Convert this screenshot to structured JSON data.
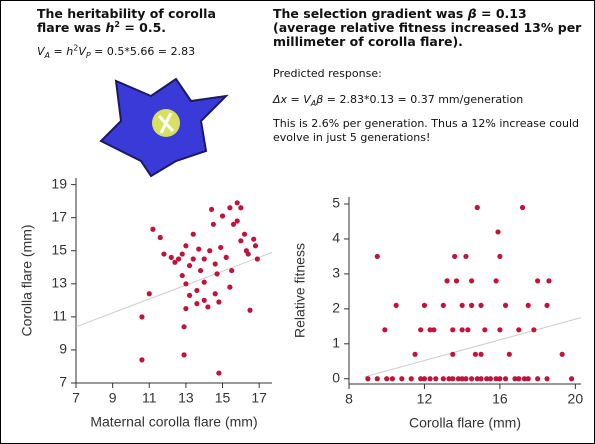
{
  "text": {
    "left_heading": [
      "The heritability of corolla flare was ",
      "h",
      "2",
      " = 0.5."
    ],
    "left_formula": [
      "V",
      "A",
      " = ",
      "h",
      "2",
      "V",
      "P",
      " = 0.5*5.66 = 2.83"
    ],
    "right_heading": [
      "The selection gradient was ",
      "β",
      " = 0.13 (average relative fitness increased 13% per millimeter of corolla flare)."
    ],
    "predicted": "Predicted response:",
    "response_formula": [
      "Δx",
      " = ",
      "V",
      "A",
      "β",
      " = 2.83*0.13 = 0.37 mm/generation"
    ],
    "conclusion": "This is 2.6% per generation.  Thus a 12% increase could evolve in just 5 generations!"
  },
  "chart_data": [
    {
      "type": "scatter",
      "xlabel": "Maternal corolla flare (mm)",
      "ylabel": "Corolla flare (mm)",
      "color": "#c0143c",
      "xlim": [
        7,
        17.7
      ],
      "ylim": [
        7,
        19.4
      ],
      "xticks": [
        7,
        9,
        11,
        13,
        15,
        17
      ],
      "yticks": [
        7,
        9,
        11,
        13,
        15,
        17,
        19
      ],
      "x": [
        10.6,
        10.6,
        11.0,
        11.2,
        11.6,
        11.8,
        12.2,
        12.4,
        12.6,
        12.8,
        12.8,
        13.0,
        13.0,
        12.9,
        12.9,
        13.0,
        13.2,
        13.2,
        13.4,
        13.4,
        13.6,
        13.6,
        13.7,
        13.8,
        14.0,
        14.0,
        14.0,
        14.2,
        14.3,
        14.4,
        14.5,
        14.6,
        14.6,
        14.7,
        14.8,
        14.8,
        14.9,
        15.0,
        15.2,
        15.4,
        15.4,
        15.5,
        15.6,
        15.8,
        15.8,
        16.0,
        16.2,
        16.3,
        16.4,
        16.5,
        16.7,
        16.8,
        16.9,
        16.0
      ],
      "values": [
        11.0,
        8.4,
        12.4,
        16.3,
        15.8,
        14.8,
        14.6,
        14.3,
        14.5,
        14.8,
        13.5,
        13.0,
        11.5,
        10.4,
        8.7,
        15.3,
        12.3,
        14.1,
        14.5,
        16.0,
        11.8,
        12.6,
        15.1,
        13.8,
        14.5,
        13.1,
        12.0,
        11.6,
        15.0,
        17.5,
        16.6,
        14.2,
        12.4,
        13.6,
        11.9,
        7.6,
        15.2,
        17.1,
        14.6,
        17.6,
        12.8,
        13.8,
        16.6,
        17.9,
        16.8,
        15.6,
        16.0,
        15.0,
        14.8,
        11.4,
        15.7,
        15.3,
        14.5,
        17.6
      ],
      "fit_line": {
        "x": [
          7,
          17.7
        ],
        "y": [
          10.4,
          14.9
        ]
      }
    },
    {
      "type": "scatter",
      "xlabel": "Corolla flare (mm)",
      "ylabel": "Relative fitness",
      "color": "#c0143c",
      "xlim": [
        8,
        20.3
      ],
      "ylim": [
        -0.15,
        5.2
      ],
      "xticks": [
        8,
        12,
        16,
        20
      ],
      "yticks": [
        0,
        1,
        2,
        3,
        4,
        5
      ],
      "x": [
        9,
        9.5,
        10,
        10.3,
        10.8,
        11.3,
        11.8,
        12,
        12.3,
        12.6,
        13,
        13.3,
        13.5,
        13.8,
        14,
        14.2,
        14.5,
        14.8,
        15,
        15.3,
        15.5,
        15.8,
        16,
        16.3,
        16.8,
        17,
        17.3,
        17.5,
        18,
        18.5,
        19.8,
        9.5,
        9.9,
        10.5,
        11.5,
        11.8,
        12.0,
        12.3,
        12.5,
        13.0,
        13.2,
        13.5,
        13.5,
        13.6,
        13.7,
        14.0,
        14.0,
        14.2,
        14.3,
        14.5,
        14.5,
        14.7,
        14.8,
        15.0,
        15.2,
        15.0,
        15.8,
        15.9,
        16.0,
        16.0,
        16.3,
        16.5,
        17.0,
        17.2,
        17.5,
        17.8,
        18.0,
        18.6,
        18.5,
        19.3
      ],
      "values": [
        0,
        0,
        0,
        0,
        0,
        0,
        0,
        0,
        0,
        0,
        0,
        0,
        0,
        0,
        0,
        0,
        0,
        0,
        0,
        0,
        0,
        0,
        0,
        0,
        0,
        0,
        0,
        0,
        0,
        0,
        0,
        3.5,
        1.4,
        2.1,
        0.7,
        1.4,
        2.1,
        1.4,
        1.4,
        2.1,
        2.8,
        0.7,
        1.4,
        3.5,
        2.8,
        1.4,
        2.1,
        3.5,
        1.4,
        2.8,
        2.1,
        0.7,
        4.9,
        2.1,
        1.4,
        0.7,
        2.8,
        4.2,
        3.5,
        1.4,
        2.1,
        0.7,
        1.4,
        4.9,
        2.1,
        1.4,
        2.8,
        2.8,
        2.1,
        0.7
      ],
      "fit_line": {
        "x": [
          8.8,
          20.3
        ],
        "y": [
          0.05,
          1.75
        ]
      }
    }
  ]
}
